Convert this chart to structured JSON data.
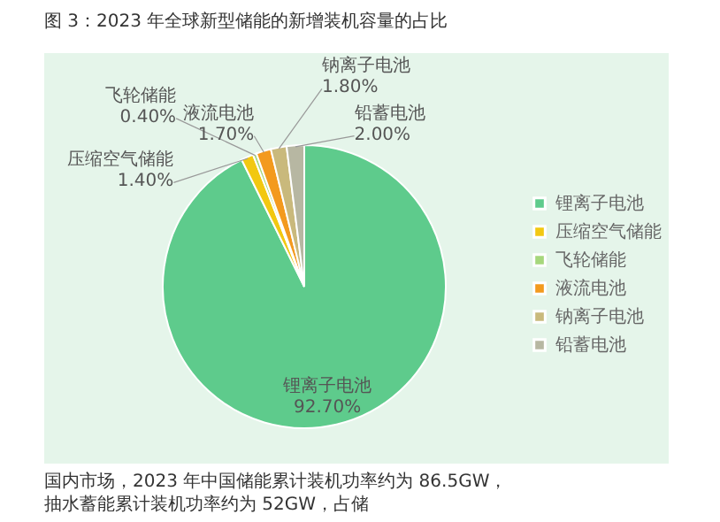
{
  "chart_data": {
    "type": "pie",
    "title": "图 3：2023 年全球新型储能的新增装机容量的占比",
    "categories": [
      "锂离子电池",
      "压缩空气储能",
      "飞轮储能",
      "液流电池",
      "钠离子电池",
      "铅蓄电池"
    ],
    "values": [
      92.7,
      1.4,
      0.4,
      1.7,
      1.8,
      2.0
    ],
    "value_labels": [
      "92.70%",
      "1.40%",
      "0.40%",
      "1.70%",
      "1.80%",
      "2.00%"
    ],
    "colors": [
      "#5ecb8c",
      "#f2c811",
      "#a6d77c",
      "#f39a1e",
      "#c9b97c",
      "#b7b7a2"
    ],
    "legend": "right",
    "annotations": [
      "国内市场，2023 年中国储能累计装机功率约为 86.5GW，抽水蓄能累计装机功率约为 52GW，占储"
    ]
  }
}
